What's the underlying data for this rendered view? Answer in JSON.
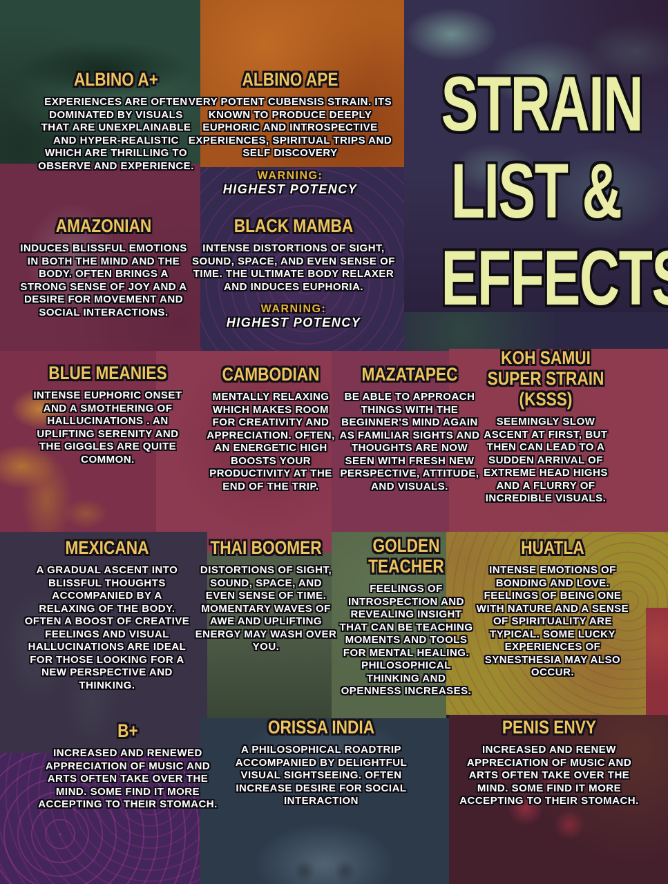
{
  "poster": {
    "title": {
      "lines": [
        "STRAIN",
        "LIST &",
        "EFFECTS"
      ]
    },
    "warning": {
      "label": "WARNING:",
      "value": "HIGHEST POTENCY"
    },
    "colors": {
      "strain_name_yellow": "#eec45e",
      "title_yellow": "#e9eda6",
      "body_text_white": "#ffffff",
      "warning_yellow": "#e8b43a",
      "row_maroon": "#8e3b4f",
      "tile_orange": "#a4531c",
      "tile_olive": "#9c8a2f",
      "tile_teal_mushroom": "#363050"
    },
    "strains": [
      {
        "name": "ALBINO A+",
        "description": "EXPERIENCES ARE OFTEN DOMINATED BY VISUALS THAT ARE UNEXPLAINABLE AND HYPER-REALISTIC WHICH ARE THRILLING TO OBSERVE AND EXPERIENCE.",
        "has_warning": false
      },
      {
        "name": "ALBINO APE",
        "description": "VERY POTENT CUBENSIS STRAIN. ITS KNOWN TO PRODUCE DEEPLY EUPHORIC AND INTROSPECTIVE EXPERIENCES, SPIRITUAL TRIPS AND SELF DISCOVERY",
        "has_warning": true
      },
      {
        "name": "AMAZONIAN",
        "description": "INDUCES BLISSFUL EMOTIONS IN BOTH THE MIND AND THE BODY. OFTEN BRINGS A STRONG SENSE OF JOY AND A DESIRE FOR MOVEMENT AND SOCIAL INTERACTIONS.",
        "has_warning": false
      },
      {
        "name": "BLACK MAMBA",
        "description": "INTENSE DISTORTIONS OF SIGHT, SOUND, SPACE, AND EVEN SENSE OF TIME. THE ULTIMATE BODY RELAXER AND INDUCES EUPHORIA.",
        "has_warning": true
      },
      {
        "name": "BLUE MEANIES",
        "description": "INTENSE EUPHORIC ONSET AND A SMOTHERING OF HALLUCINATIONS . AN UPLIFTING SERENITY AND THE GIGGLES ARE QUITE COMMON.",
        "has_warning": false
      },
      {
        "name": "CAMBODIAN",
        "description": "MENTALLY RELAXING WHICH MAKES ROOM FOR CREATIVITY AND APPRECIATION. OFTEN, AN ENERGETIC HIGH BOOSTS YOUR PRODUCTIVITY AT THE END OF THE TRIP.",
        "has_warning": false
      },
      {
        "name": "MAZATAPEC",
        "description": "BE ABLE TO APPROACH THINGS WITH THE BEGINNER'S MIND AGAIN AS FAMILIAR SIGHTS AND THOUGHTS ARE NOW SEEN WITH FRESH NEW PERSPECTIVE, ATTITUDE, AND VISUALS.",
        "has_warning": false
      },
      {
        "name": "KOH SAMUI SUPER STRAIN (KSSS)",
        "description": "SEEMINGLY SLOW ASCENT AT FIRST, BUT THEN CAN LEAD TO A SUDDEN ARRIVAL OF EXTREME HEAD HIGHS AND A FLURRY OF INCREDIBLE VISUALS.",
        "has_warning": false
      },
      {
        "name": "MEXICANA",
        "description": "A GRADUAL ASCENT INTO BLISSFUL THOUGHTS ACCOMPANIED BY A RELAXING OF THE BODY. OFTEN A BOOST OF CREATIVE FEELINGS AND VISUAL HALLUCINATIONS ARE IDEAL FOR THOSE LOOKING FOR A NEW PERSPECTIVE AND THINKING.",
        "has_warning": false
      },
      {
        "name": "THAI BOOMER",
        "description": "DISTORTIONS OF SIGHT, SOUND, SPACE, AND EVEN SENSE OF TIME. MOMENTARY WAVES OF AWE AND UPLIFTING ENERGY MAY WASH OVER YOU.",
        "has_warning": false
      },
      {
        "name": "GOLDEN TEACHER",
        "description": "FEELINGS OF INTROSPECTION AND REVEALING INSIGHT THAT CAN BE TEACHING MOMENTS AND TOOLS FOR MENTAL HEALING. PHILOSOPHICAL THINKING AND OPENNESS INCREASES.",
        "has_warning": false
      },
      {
        "name": "HUATLA",
        "description": "INTENSE EMOTIONS OF BONDING AND LOVE. FEELINGS OF BEING ONE WITH NATURE AND A SENSE OF SPIRITUALITY ARE TYPICAL. SOME LUCKY EXPERIENCES OF SYNESTHESIA MAY ALSO OCCUR.",
        "has_warning": false
      },
      {
        "name": "B+",
        "description": "INCREASED AND RENEWED APPRECIATION OF MUSIC AND ARTS OFTEN TAKE OVER THE MIND. SOME FIND IT MORE ACCEPTING TO THEIR STOMACH.",
        "has_warning": false
      },
      {
        "name": "ORISSA INDIA",
        "description": "A PHILOSOPHICAL ROADTRIP ACCOMPANIED BY DELIGHTFUL VISUAL SIGHTSEEING. OFTEN INCREASE DESIRE FOR SOCIAL INTERACTION",
        "has_warning": false
      },
      {
        "name": "PENIS ENVY",
        "description": "INCREASED AND RENEW APPRECIATION OF MUSIC AND ARTS OFTEN TAKE OVER THE MIND. SOME FIND IT MORE ACCEPTING TO THEIR STOMACH.",
        "has_warning": false
      }
    ]
  }
}
